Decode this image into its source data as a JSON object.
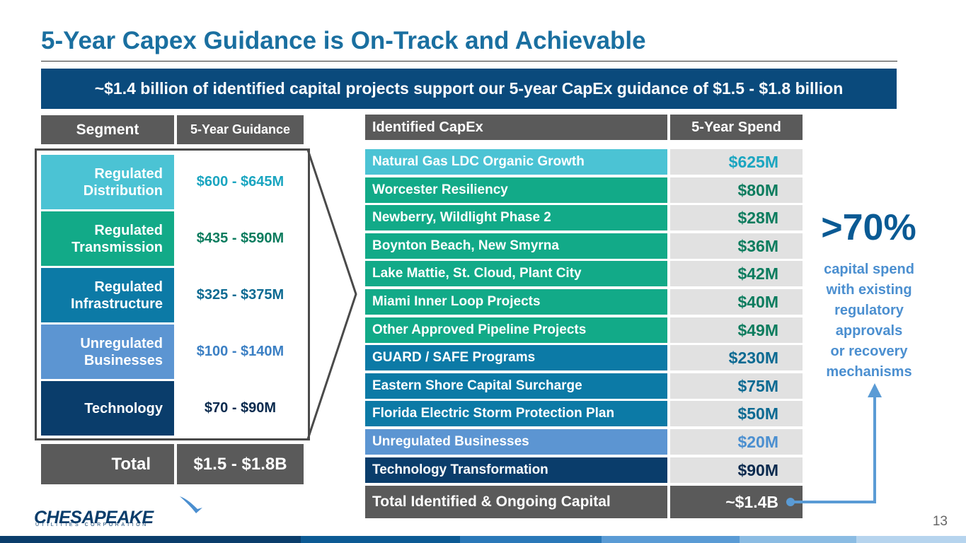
{
  "slide": {
    "title": "5-Year Capex Guidance is On-Track and Achievable",
    "banner": "~$1.4 billion of identified capital projects support our 5-year CapEx guidance of $1.5 - $1.8 billion",
    "page_number": "13"
  },
  "guidance_table": {
    "header_segment": "Segment",
    "header_guidance": "5-Year Guidance",
    "rows": [
      {
        "segment": "Regulated Distribution",
        "guidance": "$600 - $645M",
        "color": "#4bc3d4",
        "value_color": "#1aa5c0"
      },
      {
        "segment": "Regulated Transmission",
        "guidance": "$435 - $590M",
        "color": "#12aa88",
        "value_color": "#0c7c5e"
      },
      {
        "segment": "Regulated Infrastructure",
        "guidance": "$325 - $375M",
        "color": "#0c7aa6",
        "value_color": "#0c6a92"
      },
      {
        "segment": "Unregulated Businesses",
        "guidance": "$100 - $140M",
        "color": "#5c95d2",
        "value_color": "#3c80c4"
      },
      {
        "segment": "Technology",
        "guidance": "$70 - $90M",
        "color": "#0a3d6b",
        "value_color": "#0a2a4e"
      }
    ],
    "total_label": "Total",
    "total_value": "$1.5 - $1.8B"
  },
  "capex_table": {
    "header_item": "Identified CapEx",
    "header_spend": "5-Year Spend",
    "rows": [
      {
        "name": "Natural Gas LDC Organic Growth",
        "spend": "$625M",
        "color": "#4bc3d4",
        "value_color": "#1aa5c0"
      },
      {
        "name": "Worcester Resiliency",
        "spend": "$80M",
        "color": "#12aa88",
        "value_color": "#0c7c5e"
      },
      {
        "name": "Newberry, Wildlight Phase 2",
        "spend": "$28M",
        "color": "#12aa88",
        "value_color": "#0c7c5e"
      },
      {
        "name": "Boynton Beach, New Smyrna",
        "spend": "$36M",
        "color": "#12aa88",
        "value_color": "#0c7c5e"
      },
      {
        "name": "Lake Mattie, St. Cloud, Plant City",
        "spend": "$42M",
        "color": "#12aa88",
        "value_color": "#0c7c5e"
      },
      {
        "name": "Miami Inner Loop Projects",
        "spend": "$40M",
        "color": "#12aa88",
        "value_color": "#0c7c5e"
      },
      {
        "name": "Other Approved Pipeline Projects",
        "spend": "$49M",
        "color": "#12aa88",
        "value_color": "#0c7c5e"
      },
      {
        "name": "GUARD / SAFE Programs",
        "spend": "$230M",
        "color": "#0c7aa6",
        "value_color": "#0c6a92"
      },
      {
        "name": "Eastern Shore Capital Surcharge",
        "spend": "$75M",
        "color": "#0c7aa6",
        "value_color": "#0c6a92"
      },
      {
        "name": "Florida Electric Storm Protection Plan",
        "spend": "$50M",
        "color": "#0c7aa6",
        "value_color": "#0c6a92"
      },
      {
        "name": "Unregulated Businesses",
        "spend": "$20M",
        "color": "#5c95d2",
        "value_color": "#4b8fd0"
      },
      {
        "name": "Technology Transformation",
        "spend": "$90M",
        "color": "#0a3d6b",
        "value_color": "#0a2a4e"
      }
    ],
    "total_label": "Total Identified & Ongoing Capital",
    "total_value": "~$1.4B"
  },
  "callout": {
    "percent": ">70%",
    "lines": [
      "capital spend",
      "with existing",
      "regulatory",
      "approvals",
      "or recovery",
      "mechanisms"
    ]
  },
  "logo": {
    "name": "CHESAPEAKE",
    "tagline": "UTILITIES CORPORATION"
  },
  "colors": {
    "title": "#1a6fa0",
    "banner": "#0a4a7c",
    "header_gray": "#5a5a5a",
    "value_bg": "#e1e1e1",
    "arrow": "#5a9bd5"
  }
}
